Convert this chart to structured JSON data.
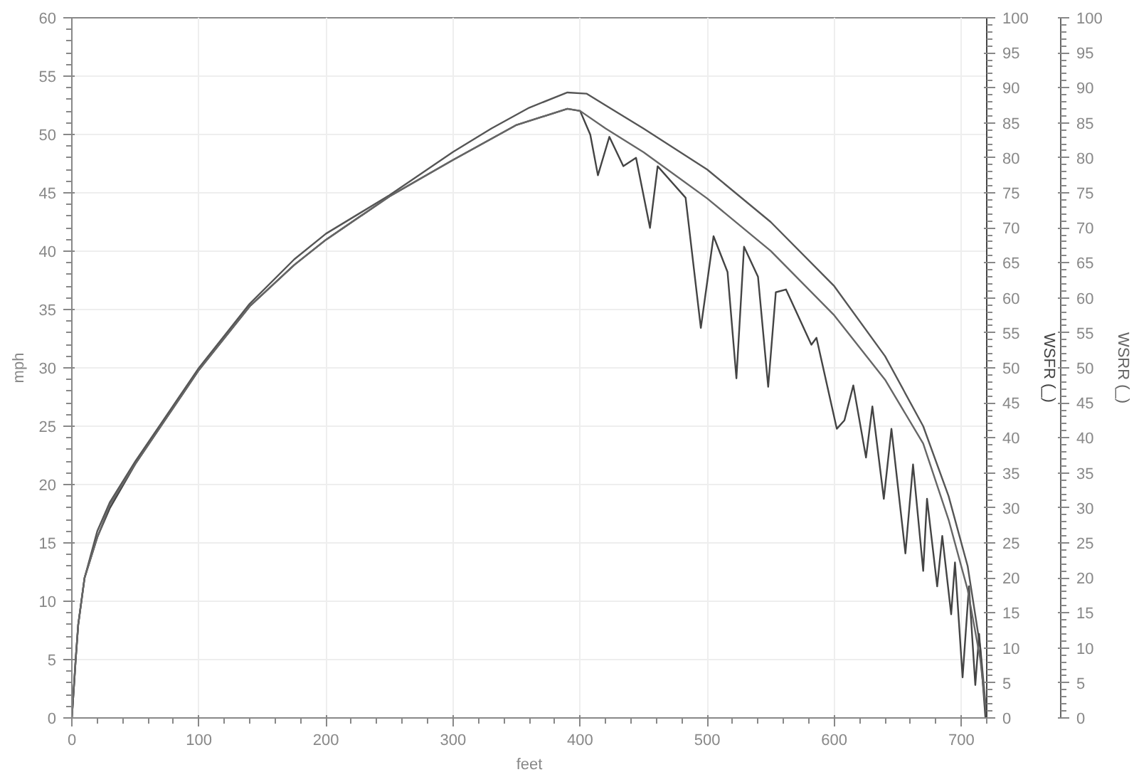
{
  "chart_data": {
    "type": "line",
    "xlabel": "feet",
    "ylabel": "mph",
    "y2label": "WSFR (_)",
    "y3label": "WSRR (_)",
    "xlim": [
      0,
      720
    ],
    "xticks": [
      0,
      100,
      200,
      300,
      400,
      500,
      600,
      700
    ],
    "ylim": [
      0,
      60
    ],
    "yticks": [
      0,
      5,
      10,
      15,
      20,
      25,
      30,
      35,
      40,
      45,
      50,
      55,
      60
    ],
    "y2lim": [
      0,
      100
    ],
    "y2ticks": [
      0,
      5,
      10,
      15,
      20,
      25,
      30,
      35,
      40,
      45,
      50,
      55,
      60,
      65,
      70,
      75,
      80,
      85,
      90,
      95,
      100
    ],
    "y3lim": [
      0,
      100
    ],
    "y3ticks": [
      0,
      5,
      10,
      15,
      20,
      25,
      30,
      35,
      40,
      45,
      50,
      55,
      60,
      65,
      70,
      75,
      80,
      85,
      90,
      95,
      100
    ],
    "grid": true,
    "line_style": "solid",
    "series": [
      {
        "color": "#555555",
        "x": [
          0,
          3,
          5,
          10,
          20,
          30,
          50,
          75,
          100,
          140,
          175,
          200,
          250,
          300,
          330,
          360,
          390,
          405,
          420,
          450,
          500,
          550,
          600,
          640,
          670,
          690,
          705,
          715,
          720
        ],
        "values": [
          0,
          5,
          8,
          12,
          16,
          18.5,
          22,
          26,
          30,
          35.5,
          39.3,
          41.5,
          44.8,
          48.5,
          50.5,
          52.3,
          53.6,
          53.5,
          52.5,
          50.5,
          47,
          42.5,
          37,
          31,
          25,
          19,
          13,
          6,
          0
        ]
      },
      {
        "color": "#444444",
        "axis": "y2",
        "x": [
          0,
          3,
          5,
          10,
          20,
          30,
          50,
          75,
          100,
          140,
          175,
          200,
          250,
          300,
          350,
          390,
          400,
          408,
          414,
          423,
          434,
          444,
          455,
          461,
          483,
          495,
          505,
          516,
          523,
          529,
          540,
          548,
          554,
          562,
          582,
          586,
          602,
          608,
          615,
          625,
          630,
          639,
          645,
          656,
          662,
          670,
          673,
          681,
          685,
          692,
          695,
          701,
          706,
          711,
          714,
          719
        ],
        "values": [
          0,
          8.3,
          13.3,
          20,
          25.8,
          30,
          36.3,
          43,
          49.7,
          58.8,
          64.7,
          68.3,
          74.5,
          79.7,
          84.7,
          87,
          86.7,
          83.3,
          77.5,
          83,
          78.8,
          80,
          70,
          78.8,
          74.3,
          55.7,
          68.8,
          63.7,
          48.5,
          67.3,
          63,
          47.3,
          60.8,
          61.2,
          53.3,
          54.3,
          41.3,
          42.5,
          47.5,
          37.2,
          44.5,
          31.3,
          41.3,
          23.5,
          36.2,
          21,
          31.3,
          18.8,
          26,
          14.8,
          22.2,
          5.8,
          18.8,
          4.7,
          12,
          0
        ]
      },
      {
        "color": "#666666",
        "axis": "y3",
        "x": [
          0,
          3,
          5,
          10,
          20,
          30,
          50,
          75,
          100,
          140,
          175,
          200,
          250,
          300,
          350,
          390,
          400,
          420,
          450,
          500,
          550,
          600,
          640,
          670,
          690,
          705,
          715,
          720
        ],
        "values": [
          0,
          8.3,
          13.3,
          20,
          25.8,
          30.5,
          36.3,
          43,
          49.7,
          58.8,
          64.7,
          68.3,
          74.5,
          79.7,
          84.7,
          87,
          86.7,
          84.2,
          80.8,
          74.2,
          66.7,
          57.5,
          48.3,
          39.2,
          28.3,
          18.3,
          8.3,
          0
        ]
      }
    ]
  }
}
